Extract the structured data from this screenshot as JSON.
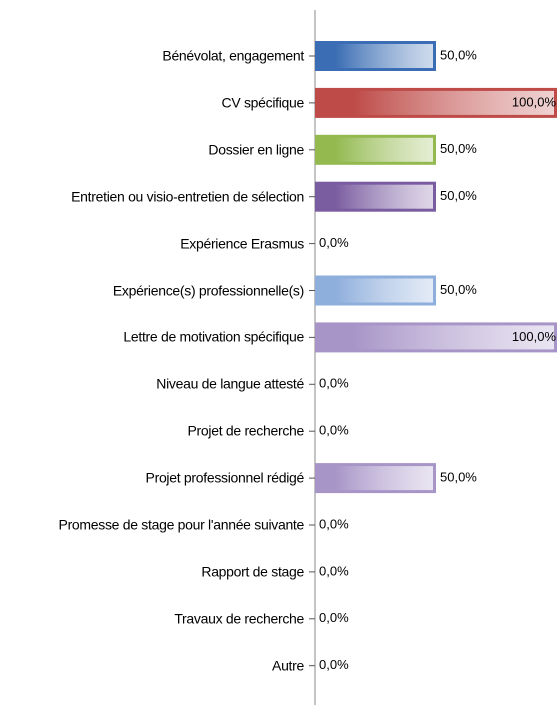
{
  "chart_data": {
    "type": "bar",
    "orientation": "horizontal",
    "categories": [
      "Bénévolat, engagement",
      "CV spécifique",
      "Dossier en ligne",
      "Entretien ou visio-entretien de sélection",
      "Expérience Erasmus",
      "Expérience(s) professionnelle(s)",
      "Lettre de motivation spécifique",
      "Niveau de langue attesté",
      "Projet de recherche",
      "Projet professionnel rédigé",
      "Promesse de stage pour l'année suivante",
      "Rapport de stage",
      "Travaux de recherche",
      "Autre"
    ],
    "values": [
      50,
      100,
      50,
      50,
      0,
      50,
      100,
      0,
      0,
      50,
      0,
      0,
      0,
      0
    ],
    "value_labels": [
      "50,0%",
      "100,0%",
      "50,0%",
      "50,0%",
      "0,0%",
      "50,0%",
      "100,0%",
      "0,0%",
      "0,0%",
      "50,0%",
      "0,0%",
      "0,0%",
      "0,0%",
      "0,0%"
    ],
    "colors": [
      "#3a6db3",
      "#be4b48",
      "#93b94f",
      "#7a5ca0",
      "#f68a3c",
      "#8eaedc",
      "#a895c8",
      "#3a6db3",
      "#3a6db3",
      "#a895c8",
      "#3a6db3",
      "#3a6db3",
      "#3a6db3",
      "#3a6db3"
    ],
    "xlim": [
      0,
      100
    ]
  }
}
